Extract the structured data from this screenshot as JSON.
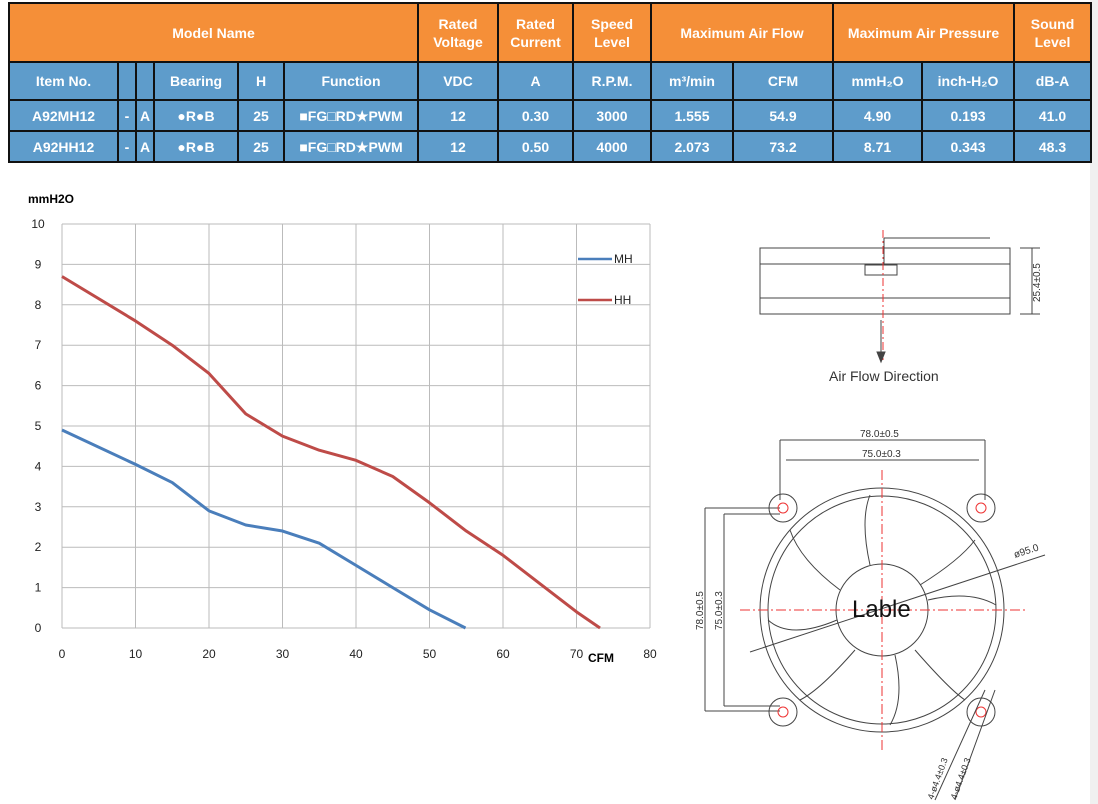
{
  "table": {
    "header": {
      "model_name": "Model Name",
      "rated_voltage": "Rated Voltage",
      "rated_current": "Rated Current",
      "speed_level": "Speed Level",
      "max_air_flow": "Maximum Air Flow",
      "max_air_pressure": "Maximum Air Pressure",
      "sound_level": "Sound Level"
    },
    "subheader": {
      "item_no": "Item No.",
      "bearing": "Bearing",
      "h": "H",
      "function": "Function",
      "vdc": "VDC",
      "a": "A",
      "rpm": "R.P.M.",
      "m3min": "m³/min",
      "cfm": "CFM",
      "mmh2o": "mmH₂O",
      "inchh2o": "inch-H₂O",
      "dba": "dB-A"
    },
    "rows": [
      {
        "item": "A92MH12",
        "dash": "-",
        "suffix": "A",
        "bearing": "●R●B",
        "h": "25",
        "function": "■FG□RD★PWM",
        "vdc": "12",
        "a": "0.30",
        "rpm": "3000",
        "m3": "1.555",
        "cfm": "54.9",
        "mm": "4.90",
        "inch": "0.193",
        "db": "41.0"
      },
      {
        "item": "A92HH12",
        "dash": "-",
        "suffix": "A",
        "bearing": "●R●B",
        "h": "25",
        "function": "■FG□RD★PWM",
        "vdc": "12",
        "a": "0.50",
        "rpm": "4000",
        "m3": "2.073",
        "cfm": "73.2",
        "mm": "8.71",
        "inch": "0.343",
        "db": "48.3"
      }
    ]
  },
  "chart_data": {
    "type": "line",
    "ylabel": "mmH2O",
    "xlabel": "CFM",
    "xlim": [
      0,
      80
    ],
    "ylim": [
      0,
      10
    ],
    "xticks": [
      0,
      10,
      20,
      30,
      40,
      50,
      60,
      70,
      80
    ],
    "yticks": [
      0,
      1,
      2,
      3,
      4,
      5,
      6,
      7,
      8,
      9,
      10
    ],
    "grid": true,
    "legend": "top-right",
    "series": [
      {
        "name": "MH",
        "color": "#4a7ebb",
        "x": [
          0,
          10,
          15,
          20,
          25,
          30,
          35,
          40,
          45,
          50,
          54.9
        ],
        "y": [
          4.9,
          4.05,
          3.6,
          2.9,
          2.55,
          2.4,
          2.1,
          1.55,
          1.0,
          0.45,
          0
        ]
      },
      {
        "name": "HH",
        "color": "#be4b48",
        "x": [
          0,
          10,
          15,
          20,
          25,
          30,
          35,
          40,
          45,
          50,
          55,
          60,
          65,
          70,
          73.2
        ],
        "y": [
          8.7,
          7.6,
          7.0,
          6.3,
          5.3,
          4.75,
          4.4,
          4.15,
          3.75,
          3.1,
          2.4,
          1.8,
          1.1,
          0.4,
          0
        ]
      }
    ]
  },
  "drawing": {
    "height_dim": "25.4±0.5",
    "airflow": "Air Flow Direction",
    "outer_dim": "78.0±0.5",
    "inner_dim": "75.0±0.3",
    "diameter": "ø95.0",
    "label": "Lable",
    "hole1": "4-ø4.4±0.3",
    "hole2": "4-ø4.4±0.3"
  }
}
